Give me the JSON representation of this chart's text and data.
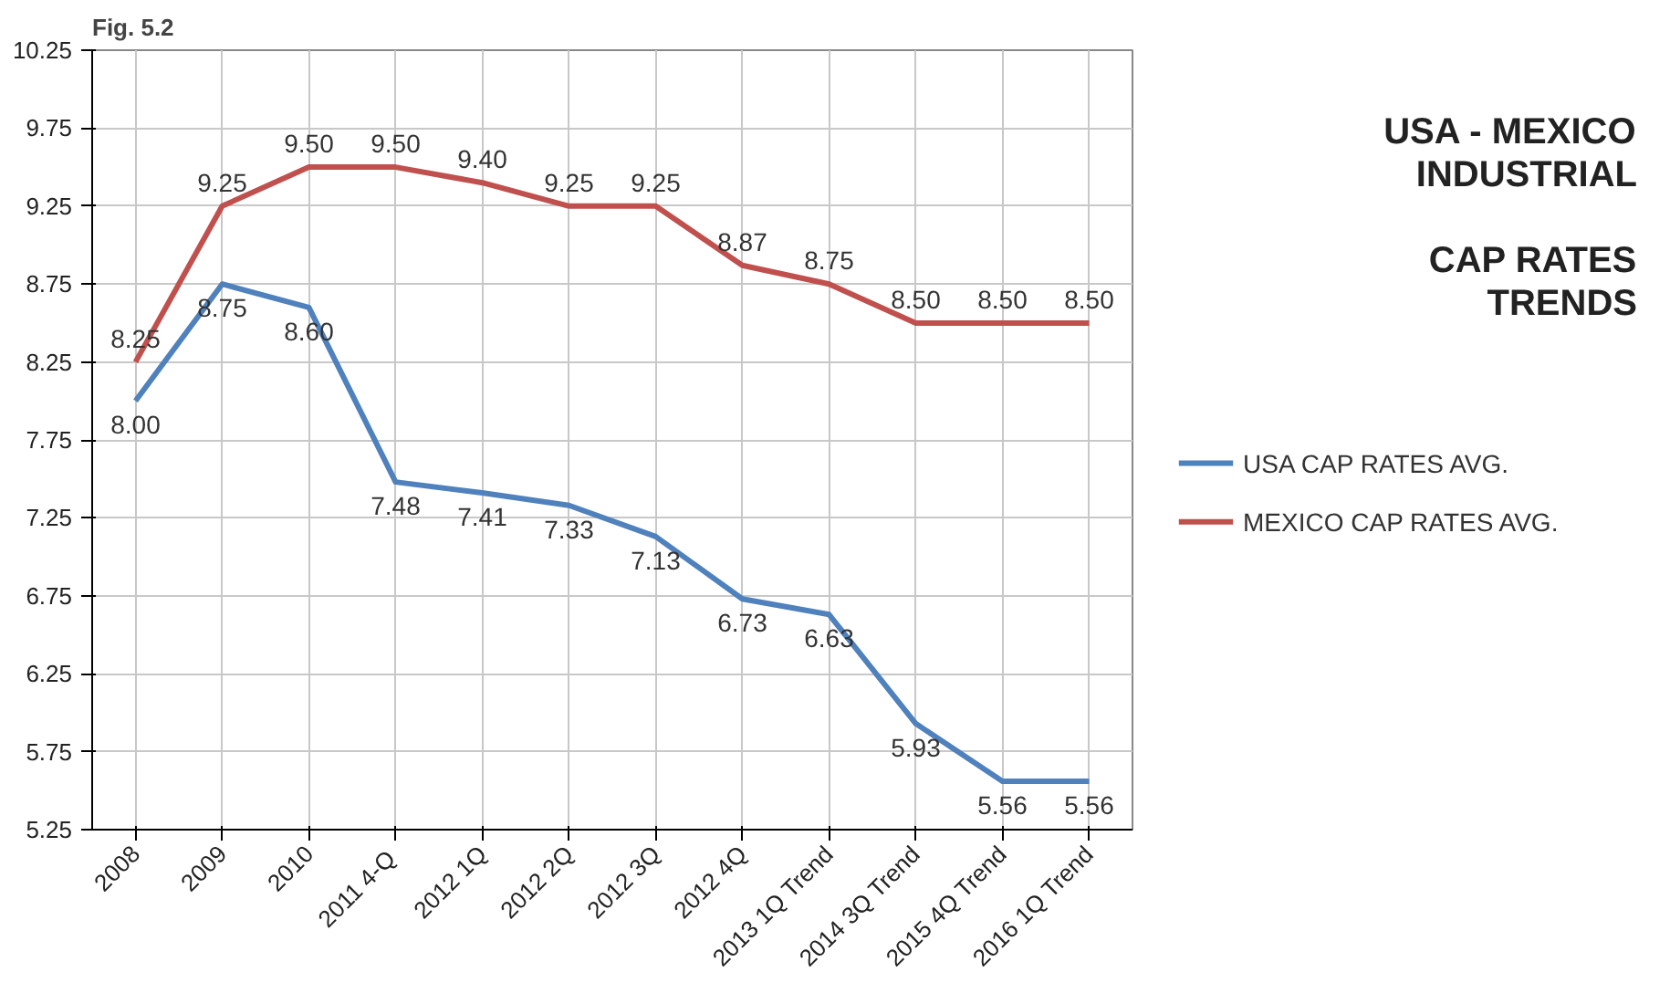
{
  "chart_data": {
    "type": "line",
    "title": "USA - MEXICO\nINDUSTRIAL\n\nCAP RATES\nTRENDS",
    "annotations": [
      "Fig. 5.2"
    ],
    "categories": [
      "2008",
      "2009",
      "2010",
      "2011  4-Q",
      "2012 1Q",
      "2012 2Q",
      "2012 3Q",
      "2012 4Q",
      "2013 1Q Trend",
      "2014 3Q Trend",
      "2015 4Q Trend",
      "2016 1Q Trend"
    ],
    "series": [
      {
        "name": "USA CAP RATES AVG.",
        "color": "#4f81bd",
        "values": [
          8.0,
          8.75,
          8.6,
          7.48,
          7.41,
          7.33,
          7.13,
          6.73,
          6.63,
          5.93,
          5.56,
          5.56
        ],
        "value_labels": [
          "8.00",
          "8.75",
          "8.60",
          "7.48",
          "7.41",
          "7.33",
          "7.13",
          "6.73",
          "6.63",
          "5.93",
          "5.56",
          "5.56"
        ]
      },
      {
        "name": "MEXICO CAP RATES AVG.",
        "color": "#c0504d",
        "values": [
          8.25,
          9.25,
          9.5,
          9.5,
          9.4,
          9.25,
          9.25,
          8.87,
          8.75,
          8.5,
          8.5,
          8.5
        ],
        "value_labels": [
          "8.25",
          "9.25",
          "9.50",
          "9.50",
          "9.40",
          "9.25",
          "9.25",
          "8.87",
          "8.75",
          "8.50",
          "8.50",
          "8.50"
        ]
      }
    ],
    "ylim": [
      5.25,
      10.25
    ],
    "yticks": [
      {
        "value": 5.25,
        "label": "5.25"
      },
      {
        "value": 5.75,
        "label": "5.75"
      },
      {
        "value": 6.25,
        "label": "6.25"
      },
      {
        "value": 6.75,
        "label": "6.75"
      },
      {
        "value": 7.25,
        "label": "7.25"
      },
      {
        "value": 7.75,
        "label": "7.75"
      },
      {
        "value": 8.25,
        "label": "8.25"
      },
      {
        "value": 8.75,
        "label": "8.75"
      },
      {
        "value": 9.25,
        "label": "9.25"
      },
      {
        "value": 9.75,
        "label": "9.75"
      },
      {
        "value": 10.25,
        "label": "10.25"
      }
    ],
    "grid": true,
    "legend": "right",
    "marker": "none",
    "line_style": "solid"
  }
}
